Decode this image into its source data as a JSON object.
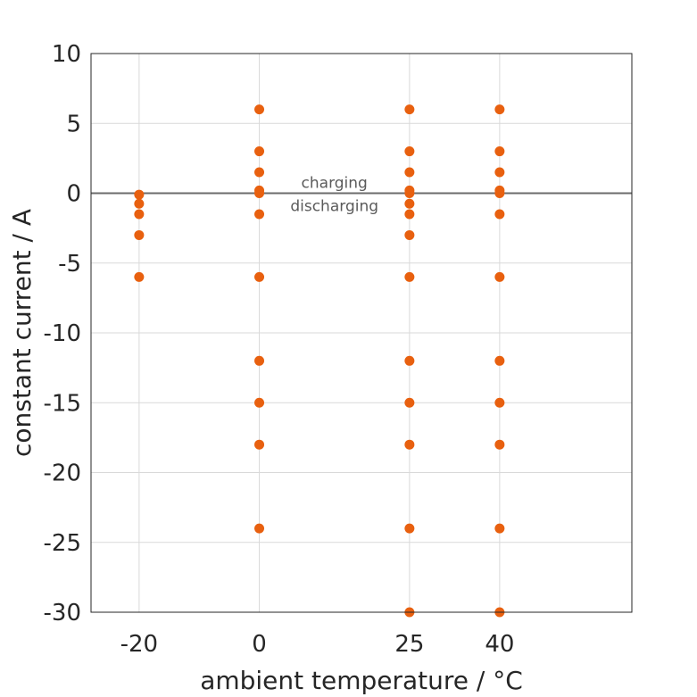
{
  "chart_data": {
    "type": "scatter",
    "xlabel": "ambient temperature / °C",
    "ylabel": "constant current / A",
    "xlim": [
      -28,
      62
    ],
    "ylim": [
      -30,
      10
    ],
    "x_ticks": [
      -20,
      0,
      25,
      40
    ],
    "y_ticks": [
      10,
      5,
      0,
      -5,
      -10,
      -15,
      -20,
      -25,
      -30
    ],
    "grid": true,
    "marker_color": "#E8600F",
    "zero_line_color": "#6b6b6b",
    "annotations": {
      "above": "charging",
      "below": "discharging"
    },
    "points": [
      {
        "x": -20,
        "y": -0.1
      },
      {
        "x": -20,
        "y": -0.75
      },
      {
        "x": -20,
        "y": -1.5
      },
      {
        "x": -20,
        "y": -3
      },
      {
        "x": -20,
        "y": -6
      },
      {
        "x": 0,
        "y": 6
      },
      {
        "x": 0,
        "y": 3
      },
      {
        "x": 0,
        "y": 1.5
      },
      {
        "x": 0,
        "y": 0.2
      },
      {
        "x": 0,
        "y": 0
      },
      {
        "x": 0,
        "y": -1.5
      },
      {
        "x": 0,
        "y": -6
      },
      {
        "x": 0,
        "y": -12
      },
      {
        "x": 0,
        "y": -15
      },
      {
        "x": 0,
        "y": -18
      },
      {
        "x": 0,
        "y": -24
      },
      {
        "x": 25,
        "y": 6
      },
      {
        "x": 25,
        "y": 3
      },
      {
        "x": 25,
        "y": 1.5
      },
      {
        "x": 25,
        "y": 0.2
      },
      {
        "x": 25,
        "y": 0
      },
      {
        "x": 25,
        "y": -0.75
      },
      {
        "x": 25,
        "y": -1.5
      },
      {
        "x": 25,
        "y": -3
      },
      {
        "x": 25,
        "y": -6
      },
      {
        "x": 25,
        "y": -12
      },
      {
        "x": 25,
        "y": -15
      },
      {
        "x": 25,
        "y": -18
      },
      {
        "x": 25,
        "y": -24
      },
      {
        "x": 25,
        "y": -30
      },
      {
        "x": 40,
        "y": 6
      },
      {
        "x": 40,
        "y": 3
      },
      {
        "x": 40,
        "y": 1.5
      },
      {
        "x": 40,
        "y": 0.2
      },
      {
        "x": 40,
        "y": 0
      },
      {
        "x": 40,
        "y": -1.5
      },
      {
        "x": 40,
        "y": -6
      },
      {
        "x": 40,
        "y": -12
      },
      {
        "x": 40,
        "y": -15
      },
      {
        "x": 40,
        "y": -18
      },
      {
        "x": 40,
        "y": -24
      },
      {
        "x": 40,
        "y": -30
      }
    ]
  }
}
